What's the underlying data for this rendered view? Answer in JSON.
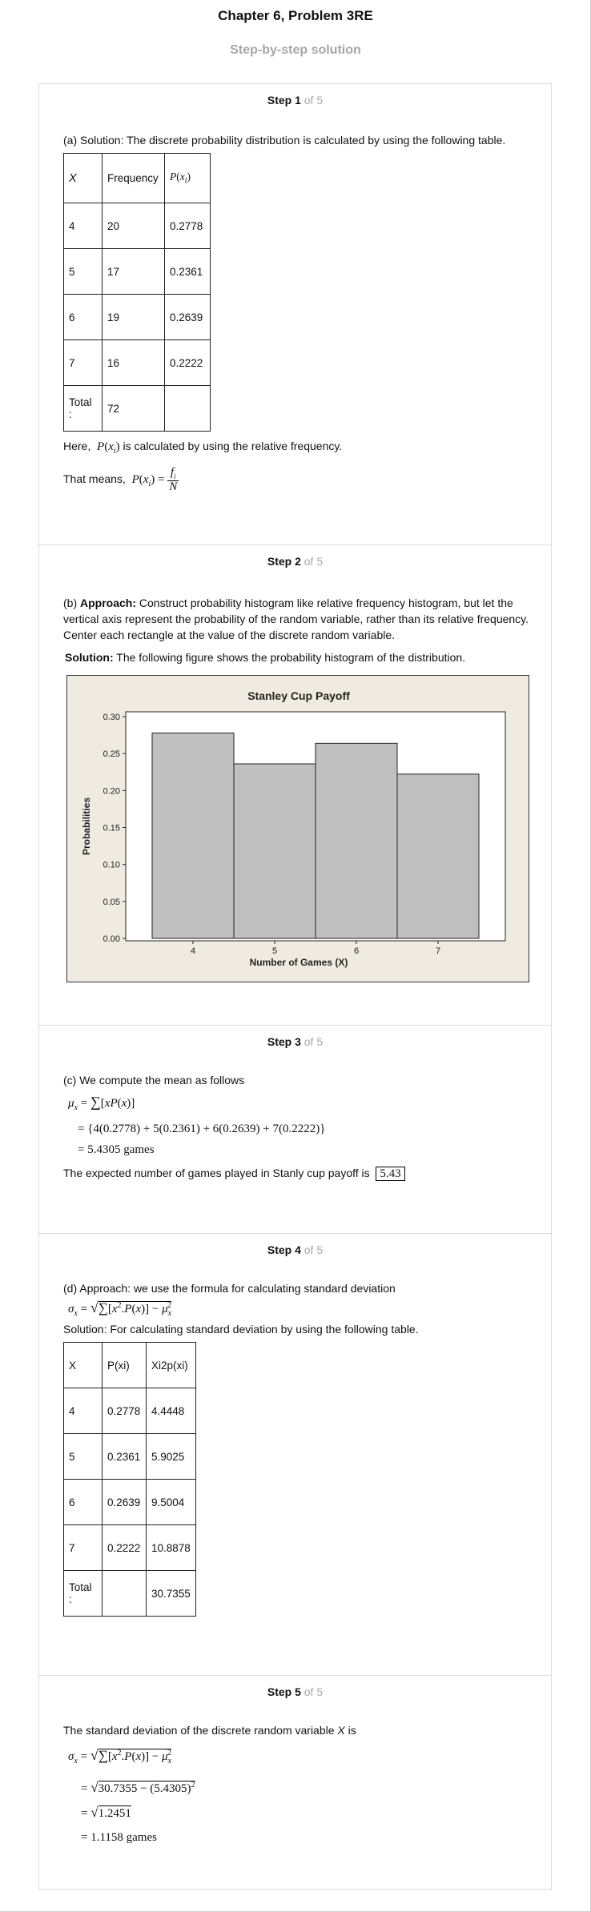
{
  "header": {
    "title": "Chapter 6, Problem 3RE",
    "subtitle": "Step-by-step solution"
  },
  "steps": [
    {
      "num": "Step 1",
      "of": "of 5"
    },
    {
      "num": "Step 2",
      "of": "of 5"
    },
    {
      "num": "Step 3",
      "of": "of 5"
    },
    {
      "num": "Step 4",
      "of": "of 5"
    },
    {
      "num": "Step 5",
      "of": "of 5"
    }
  ],
  "step1": {
    "intro": "(a) Solution: The discrete probability distribution is calculated by using the following table.",
    "table_headers": [
      "X",
      "Frequency",
      "P(xi)"
    ],
    "rows": [
      [
        "4",
        "20",
        "0.2778"
      ],
      [
        "5",
        "17",
        "0.2361"
      ],
      [
        "6",
        "19",
        "0.2639"
      ],
      [
        "7",
        "16",
        "0.2222"
      ],
      [
        "Total :",
        "72",
        ""
      ]
    ],
    "here_prefix": "Here,",
    "here_suffix": "is calculated by using the relative frequency.",
    "means_prefix": "That means,"
  },
  "step2": {
    "approach_label": "(b) ",
    "approach_bold": "Approach:",
    "approach_text": " Construct probability histogram like relative frequency histogram, but let the vertical axis represent the probability of the random variable, rather than its relative frequency. Center each rectangle at the value of the discrete random variable.",
    "solution_bold": "Solution:",
    "solution_text": " The following figure shows the probability histogram of the distribution."
  },
  "chart_data": {
    "type": "bar",
    "title": "Stanley Cup Payoff",
    "xlabel": "Number of Games (X)",
    "ylabel": "Probabilities",
    "categories": [
      "4",
      "5",
      "6",
      "7"
    ],
    "values": [
      0.2778,
      0.2361,
      0.2639,
      0.2222
    ],
    "ylim": [
      0,
      0.3
    ],
    "yticks": [
      "0.00",
      "0.05",
      "0.10",
      "0.15",
      "0.20",
      "0.25",
      "0.30"
    ],
    "grid": false,
    "colors": {
      "bar": "#c0c0c0",
      "frame": "#efebe0",
      "plot": "#ffffff"
    }
  },
  "step3": {
    "intro": "(c) We compute the mean as follows",
    "line2": "= {4(0.2778) + 5(0.2361) + 6(0.2639) + 7(0.2222)}",
    "line3": "= 5.4305 games",
    "conclusion": "The expected number of games played in Stanly cup payoff is",
    "answer": "5.43"
  },
  "step4": {
    "intro": "(d) Approach: we use the formula for calculating standard deviation",
    "solution": "Solution: For calculating standard deviation by using the following table.",
    "table_headers": [
      "X",
      "P(xi)",
      "Xi2p(xi)"
    ],
    "rows": [
      [
        "4",
        "0.2778",
        "4.4448"
      ],
      [
        "5",
        "0.2361",
        "5.9025"
      ],
      [
        "6",
        "0.2639",
        "9.5004"
      ],
      [
        "7",
        "0.2222",
        "10.8878"
      ],
      [
        "Total :",
        "",
        "30.7355"
      ]
    ]
  },
  "step5": {
    "intro_prefix": "The standard deviation of the discrete random variable",
    "intro_var": "X",
    "intro_suffix": "is",
    "line2": "30.7355 − (5.4305)",
    "line3": "1.2451",
    "line4": "= 1.1158  games"
  }
}
